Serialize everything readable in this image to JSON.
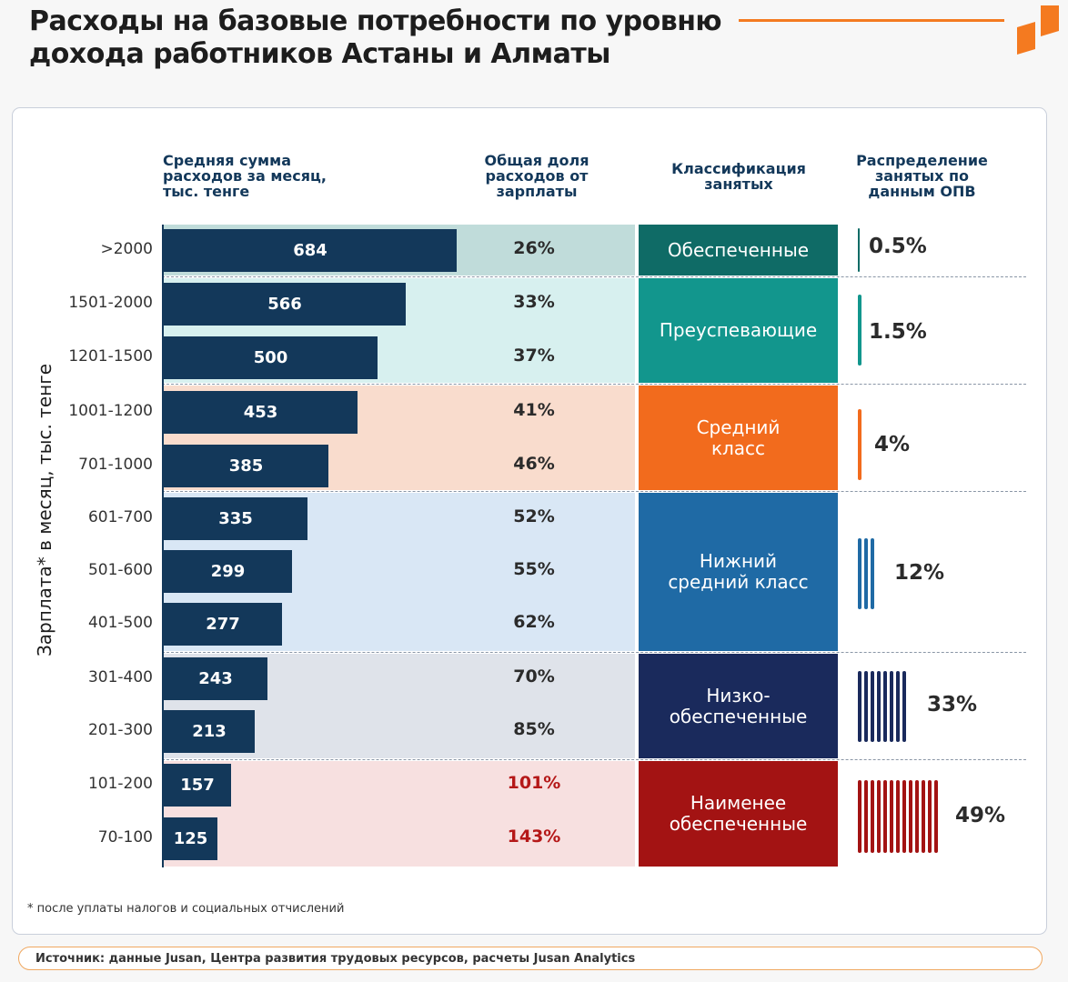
{
  "title": "Расходы на базовые потребности по уровню\nдохода работников Астаны и Алматы",
  "columns": {
    "spend": "Средняя сумма\nрасходов за месяц,\nтыс. тенге",
    "share": "Общая доля\nрасходов от\nзарплаты",
    "class": "Классификация\nзанятых",
    "dist": "Распределение\nзанятых по\nданным ОПВ"
  },
  "yaxis_label": "Зарплата* в месяц, тыс. тенге",
  "footnote": "*  после уплаты налогов и социальных отчислений",
  "source": "Источник: данные Jusan, Центра развития трудовых ресурсов, расчеты Jusan Analytics",
  "colors": {
    "accent": "#f47a20",
    "bar": "#13385a",
    "class1": "#0f6b66",
    "class2": "#12968d",
    "class3": "#f26b1d",
    "class4": "#1f6aa5",
    "class5": "#1a2a5c",
    "class6": "#a31313"
  },
  "chart_data": {
    "type": "bar",
    "title": "Расходы на базовые потребности по уровню дохода работников Астаны и Алматы",
    "xlabel": "Средняя сумма расходов за месяц, тыс. тенге",
    "ylabel": "Зарплата* в месяц, тыс. тенге",
    "categories": [
      ">2000",
      "1501-2000",
      "1201-1500",
      "1001-1200",
      "701-1000",
      "601-700",
      "501-600",
      "401-500",
      "301-400",
      "201-300",
      "101-200",
      "70-100"
    ],
    "values": [
      684,
      566,
      500,
      453,
      385,
      335,
      299,
      277,
      243,
      213,
      157,
      125
    ],
    "value_labels": [
      "684",
      "566",
      "500",
      "453",
      "385",
      "335",
      "299",
      "277",
      "243",
      "213",
      "157",
      "125"
    ],
    "shares": [
      "26%",
      "33%",
      "37%",
      "41%",
      "46%",
      "52%",
      "55%",
      "62%",
      "70%",
      "85%",
      "101%",
      "143%"
    ],
    "share_highlight": [
      false,
      false,
      false,
      false,
      false,
      false,
      false,
      false,
      false,
      false,
      true,
      true
    ],
    "xlim": [
      0,
      684
    ],
    "classes": [
      {
        "label": "Обеспеченные",
        "rows": [
          0
        ],
        "distribution": "0.5%",
        "dist_value": 0.5,
        "color_key": "class1"
      },
      {
        "label": "Преуспевающие",
        "rows": [
          1,
          2
        ],
        "distribution": "1.5%",
        "dist_value": 1.5,
        "color_key": "class2"
      },
      {
        "label": "Средний\nкласс",
        "rows": [
          3,
          4
        ],
        "distribution": "4%",
        "dist_value": 4,
        "color_key": "class3"
      },
      {
        "label": "Нижний\nсредний класс",
        "rows": [
          5,
          6,
          7
        ],
        "distribution": "12%",
        "dist_value": 12,
        "color_key": "class4"
      },
      {
        "label": "Низко-\nобеспеченные",
        "rows": [
          8,
          9
        ],
        "distribution": "33%",
        "dist_value": 33,
        "color_key": "class5"
      },
      {
        "label": "Наименее\nобеспеченные",
        "rows": [
          10,
          11
        ],
        "distribution": "49%",
        "dist_value": 49,
        "color_key": "class6"
      }
    ]
  }
}
